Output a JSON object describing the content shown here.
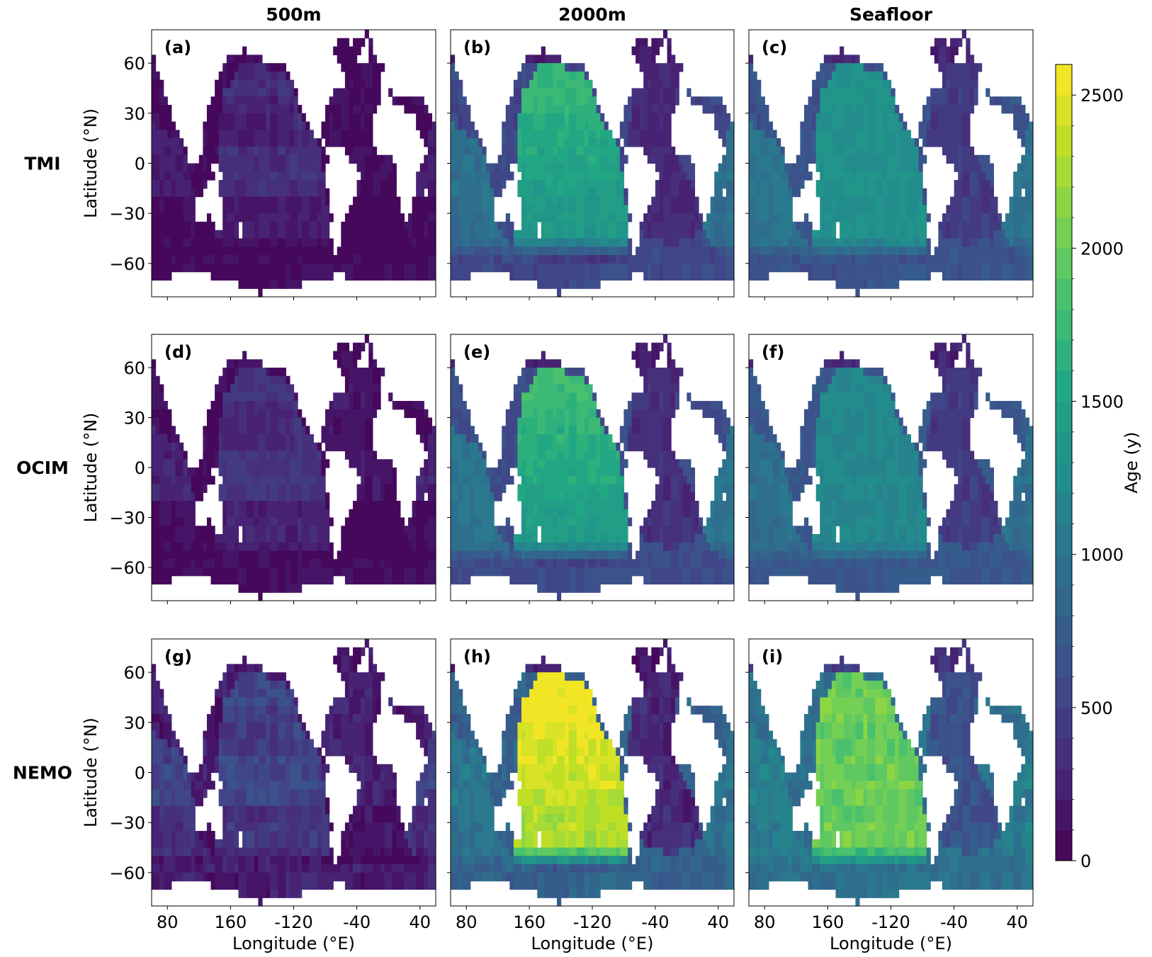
{
  "figure": {
    "column_titles": [
      "500m",
      "2000m",
      "Seafloor"
    ],
    "row_labels": [
      "TMI",
      "OCIM",
      "NEMO"
    ],
    "panel_labels": [
      "(a)",
      "(b)",
      "(c)",
      "(d)",
      "(e)",
      "(f)",
      "(g)",
      "(h)",
      "(i)"
    ],
    "ylabel": "Latitude (°N)",
    "xlabel": "Longitude (°E)",
    "lat_ticks": [
      "60",
      "30",
      "0",
      "−30",
      "−60"
    ],
    "lon_ticks": [
      "80",
      "160",
      "-120",
      "-40",
      "40"
    ],
    "colorbar": {
      "label": "Age (y)",
      "ticks": [
        "0",
        "500",
        "1000",
        "1500",
        "2000",
        "2500"
      ],
      "range": [
        0,
        2600
      ],
      "colormap": "viridis",
      "levels": 26
    }
  },
  "chart_data": {
    "type": "heatmap",
    "projection": "equirectangular, centered on Pacific",
    "lat_range": [
      -80,
      80
    ],
    "lon_range": [
      60,
      420
    ],
    "lat_ticks": [
      60,
      30,
      0,
      -30,
      -60
    ],
    "lon_ticks": [
      80,
      160,
      240,
      320,
      400
    ],
    "colors": {
      "land": "#ffffff",
      "frame": "#000000"
    },
    "panels": [
      {
        "label": "(a)",
        "model": "TMI",
        "depth": "500m",
        "typical_age": {
          "pacific": 350,
          "atlantic": 100,
          "indian": 220,
          "southern": 60
        }
      },
      {
        "label": "(b)",
        "model": "TMI",
        "depth": "2000m",
        "typical_age": {
          "pacific": 1400,
          "atlantic": 300,
          "indian": 950,
          "southern": 550
        }
      },
      {
        "label": "(c)",
        "model": "TMI",
        "depth": "Seafloor",
        "typical_age": {
          "pacific": 1300,
          "atlantic": 450,
          "indian": 1000,
          "southern": 650
        }
      },
      {
        "label": "(d)",
        "model": "OCIM",
        "depth": "500m",
        "typical_age": {
          "pacific": 400,
          "atlantic": 150,
          "indian": 250,
          "southern": 80
        }
      },
      {
        "label": "(e)",
        "model": "OCIM",
        "depth": "2000m",
        "typical_age": {
          "pacific": 1450,
          "atlantic": 350,
          "indian": 1000,
          "southern": 600
        }
      },
      {
        "label": "(f)",
        "model": "OCIM",
        "depth": "Seafloor",
        "typical_age": {
          "pacific": 1200,
          "atlantic": 450,
          "indian": 950,
          "southern": 700
        }
      },
      {
        "label": "(g)",
        "model": "NEMO",
        "depth": "500m",
        "typical_age": {
          "pacific": 550,
          "atlantic": 250,
          "indian": 500,
          "southern": 200
        }
      },
      {
        "label": "(h)",
        "model": "NEMO",
        "depth": "2000m",
        "typical_age": {
          "pacific": 2300,
          "atlantic": 300,
          "indian": 1000,
          "southern": 800
        }
      },
      {
        "label": "(i)",
        "model": "NEMO",
        "depth": "Seafloor",
        "typical_age": {
          "pacific": 2000,
          "atlantic": 650,
          "indian": 1100,
          "southern": 950
        }
      }
    ]
  }
}
